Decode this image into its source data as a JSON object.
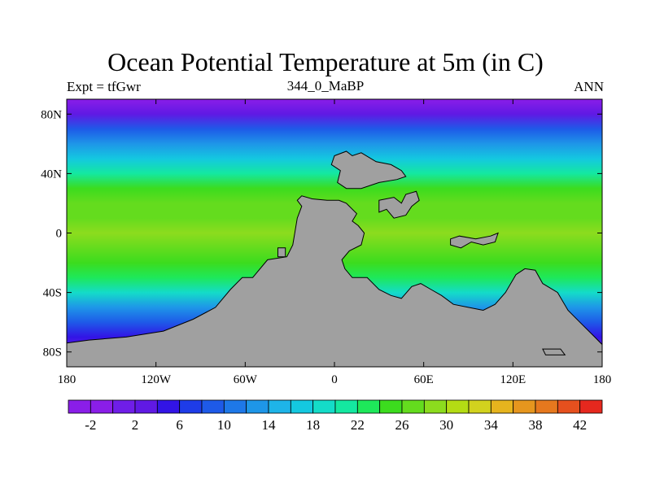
{
  "chart_data": {
    "type": "heatmap",
    "title": "Ocean Potential Temperature at 5m (in C)",
    "left_label": "Expt = tfGwr",
    "center_label": "344_0_MaBP",
    "right_label": "ANN",
    "x_range": [
      -180,
      180
    ],
    "y_range": [
      -90,
      90
    ],
    "x_ticks": [
      {
        "value": -180,
        "label": "180"
      },
      {
        "value": -120,
        "label": "120W"
      },
      {
        "value": -60,
        "label": "60W"
      },
      {
        "value": 0,
        "label": "0"
      },
      {
        "value": 60,
        "label": "60E"
      },
      {
        "value": 120,
        "label": "120E"
      },
      {
        "value": 180,
        "label": "180"
      }
    ],
    "y_ticks": [
      {
        "value": 80,
        "label": "80N"
      },
      {
        "value": 40,
        "label": "40N"
      },
      {
        "value": 0,
        "label": "0"
      },
      {
        "value": -40,
        "label": "40S"
      },
      {
        "value": -80,
        "label": "80S"
      }
    ],
    "colorbar": {
      "levels": [
        -4,
        -2,
        0,
        2,
        4,
        6,
        8,
        10,
        12,
        14,
        16,
        18,
        20,
        22,
        24,
        26,
        28,
        30,
        32,
        34,
        36,
        38,
        40,
        42,
        44
      ],
      "labels": [
        "-2",
        "2",
        "6",
        "10",
        "14",
        "18",
        "22",
        "26",
        "30",
        "34",
        "38",
        "42"
      ],
      "colors": [
        "#8a1ee8",
        "#8a1ee8",
        "#6f1ee8",
        "#6019e4",
        "#3214e6",
        "#1e3ce8",
        "#1e5ae8",
        "#1e78e8",
        "#1e96e8",
        "#1eb4e8",
        "#14c8e0",
        "#14dcc8",
        "#14e8a0",
        "#1ee85a",
        "#3cdc1e",
        "#64dc1e",
        "#8cdc1e",
        "#b4dc14",
        "#d2d21e",
        "#e6b41e",
        "#e6961e",
        "#e6781e",
        "#e6501e",
        "#e6281e"
      ]
    },
    "zonal_mean_temperature": [
      {
        "lat": 90,
        "value": -2
      },
      {
        "lat": 80,
        "value": 2
      },
      {
        "lat": 70,
        "value": 8
      },
      {
        "lat": 60,
        "value": 12
      },
      {
        "lat": 50,
        "value": 16
      },
      {
        "lat": 40,
        "value": 21
      },
      {
        "lat": 30,
        "value": 24
      },
      {
        "lat": 20,
        "value": 26
      },
      {
        "lat": 10,
        "value": 27
      },
      {
        "lat": 0,
        "value": 28
      },
      {
        "lat": -10,
        "value": 27
      },
      {
        "lat": -20,
        "value": 25
      },
      {
        "lat": -30,
        "value": 22
      },
      {
        "lat": -40,
        "value": 18
      },
      {
        "lat": -50,
        "value": 13
      },
      {
        "lat": -60,
        "value": 8
      },
      {
        "lat": -70,
        "value": 4
      },
      {
        "lat": -80,
        "value": 1
      },
      {
        "lat": -90,
        "value": -1
      }
    ],
    "land_color": "#a0a0a0",
    "land_masses": [
      {
        "name": "pangea",
        "outline": [
          [
            -55,
            -30
          ],
          [
            -45,
            -18
          ],
          [
            -32,
            -16
          ],
          [
            -28,
            -8
          ],
          [
            -25,
            10
          ],
          [
            -22,
            18
          ],
          [
            -25,
            22
          ],
          [
            -22,
            25
          ],
          [
            -15,
            23
          ],
          [
            -5,
            22
          ],
          [
            3,
            22
          ],
          [
            8,
            20
          ],
          [
            10,
            18
          ],
          [
            15,
            13
          ],
          [
            12,
            8
          ],
          [
            16,
            5
          ],
          [
            20,
            0
          ],
          [
            18,
            -8
          ],
          [
            10,
            -12
          ],
          [
            5,
            -18
          ],
          [
            7,
            -24
          ],
          [
            12,
            -30
          ],
          [
            22,
            -30
          ],
          [
            30,
            -38
          ],
          [
            38,
            -42
          ],
          [
            45,
            -44
          ],
          [
            52,
            -36
          ],
          [
            58,
            -34
          ],
          [
            65,
            -38
          ],
          [
            72,
            -42
          ],
          [
            80,
            -48
          ],
          [
            90,
            -50
          ],
          [
            100,
            -52
          ],
          [
            108,
            -48
          ],
          [
            115,
            -40
          ],
          [
            122,
            -28
          ],
          [
            128,
            -24
          ],
          [
            135,
            -25
          ],
          [
            140,
            -34
          ],
          [
            150,
            -40
          ],
          [
            157,
            -52
          ],
          [
            165,
            -60
          ],
          [
            175,
            -70
          ],
          [
            180,
            -75
          ],
          [
            180,
            -90
          ],
          [
            -180,
            -90
          ],
          [
            -180,
            -74
          ],
          [
            -165,
            -72
          ],
          [
            -140,
            -70
          ],
          [
            -115,
            -66
          ],
          [
            -95,
            -58
          ],
          [
            -80,
            -50
          ],
          [
            -70,
            -38
          ],
          [
            -62,
            -30
          ]
        ]
      },
      {
        "name": "eurasia-north",
        "outline": [
          [
            0,
            52
          ],
          [
            8,
            55
          ],
          [
            12,
            52
          ],
          [
            18,
            54
          ],
          [
            28,
            48
          ],
          [
            38,
            46
          ],
          [
            45,
            42
          ],
          [
            48,
            38
          ],
          [
            42,
            36
          ],
          [
            30,
            34
          ],
          [
            18,
            30
          ],
          [
            8,
            30
          ],
          [
            2,
            34
          ],
          [
            4,
            42
          ],
          [
            -2,
            46
          ]
        ]
      },
      {
        "name": "island-east",
        "outline": [
          [
            78,
            -4
          ],
          [
            84,
            -2
          ],
          [
            95,
            -4
          ],
          [
            105,
            -2
          ],
          [
            110,
            0
          ],
          [
            108,
            -6
          ],
          [
            100,
            -8
          ],
          [
            92,
            -6
          ],
          [
            85,
            -10
          ],
          [
            78,
            -8
          ]
        ]
      },
      {
        "name": "island-middle",
        "outline": [
          [
            30,
            22
          ],
          [
            40,
            24
          ],
          [
            45,
            20
          ],
          [
            48,
            26
          ],
          [
            55,
            28
          ],
          [
            57,
            22
          ],
          [
            52,
            18
          ],
          [
            48,
            12
          ],
          [
            40,
            10
          ],
          [
            35,
            16
          ],
          [
            30,
            14
          ]
        ]
      },
      {
        "name": "island-small",
        "outline": [
          [
            -38,
            -10
          ],
          [
            -33,
            -10
          ],
          [
            -33,
            -16
          ],
          [
            -38,
            -16
          ]
        ]
      },
      {
        "name": "antarctic-shelf",
        "outline": [
          [
            140,
            -78
          ],
          [
            152,
            -78
          ],
          [
            155,
            -82
          ],
          [
            142,
            -82
          ]
        ]
      }
    ]
  }
}
